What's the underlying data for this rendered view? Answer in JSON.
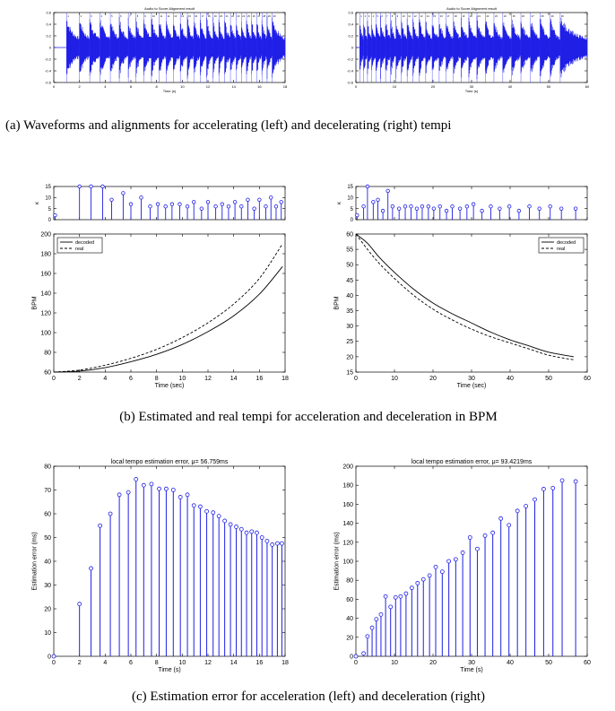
{
  "captions": {
    "a": "(a) Waveforms and alignments for accelerating (left) and decelerating (right) tempi",
    "b": "(b) Estimated and real tempi for acceleration and deceleration in BPM",
    "c": "(c) Estimation error for acceleration (left) and deceleration (right)"
  },
  "chart_data": [
    {
      "id": "wave-accel",
      "type": "area",
      "title": "Audio to Score Alignment result",
      "xlabel": "Time (s)",
      "ylabel": "",
      "xlim": [
        0,
        18
      ],
      "ylim": [
        -0.6,
        0.6
      ],
      "xticks": [
        0,
        2,
        4,
        6,
        8,
        10,
        12,
        14,
        16,
        18
      ],
      "yticks": [
        0.6,
        0.4,
        0.2,
        0,
        -0.2,
        -0.4,
        -0.6
      ],
      "alignment_markers": [
        "1",
        "2",
        "3",
        "4",
        "5",
        "6",
        "7",
        "8",
        "9",
        "10",
        "11",
        "12",
        "13",
        "14",
        "15",
        "16",
        "17",
        "18",
        "19",
        "20",
        "21",
        "22",
        "23",
        "24",
        "25",
        "26",
        "27",
        "28",
        "29",
        "30"
      ],
      "onsets": [
        1.0,
        2.0,
        2.8,
        3.6,
        4.4,
        5.1,
        5.8,
        6.4,
        7.0,
        7.6,
        8.2,
        8.75,
        9.3,
        9.85,
        10.4,
        10.9,
        11.4,
        11.9,
        12.4,
        12.85,
        13.3,
        13.75,
        14.2,
        14.6,
        15.0,
        15.4,
        15.8,
        16.2,
        16.6,
        17.0
      ]
    },
    {
      "id": "wave-decel",
      "type": "area",
      "title": "Audio to Score Alignment result",
      "xlabel": "Time (s)",
      "ylabel": "",
      "xlim": [
        0,
        60
      ],
      "ylim": [
        -0.6,
        0.6
      ],
      "xticks": [
        0,
        10,
        20,
        30,
        40,
        50,
        60
      ],
      "yticks": [
        0.6,
        0.4,
        0.2,
        0,
        -0.2,
        -0.4,
        -0.6
      ],
      "alignment_markers": [
        "1",
        "2",
        "3",
        "4",
        "5",
        "6",
        "7",
        "8",
        "9",
        "10",
        "11",
        "12",
        "13",
        "14",
        "15",
        "16",
        "17",
        "18",
        "19",
        "20",
        "21",
        "22",
        "23",
        "24",
        "25",
        "26",
        "27",
        "28",
        "29",
        "30"
      ],
      "onsets": [
        1.0,
        2.0,
        3.0,
        4.1,
        5.2,
        6.4,
        7.7,
        9.0,
        10.4,
        11.8,
        13.3,
        14.8,
        16.4,
        18.1,
        19.8,
        21.6,
        23.4,
        25.3,
        27.3,
        29.3,
        31.4,
        33.6,
        35.8,
        38.1,
        40.4,
        42.8,
        45.3,
        47.8,
        50.4,
        53.0
      ]
    },
    {
      "id": "kappa-accel",
      "type": "scatter",
      "xlabel": "",
      "ylabel": "κ",
      "xlim": [
        0,
        18
      ],
      "ylim": [
        0,
        15
      ],
      "xticks": [
        0,
        2,
        4,
        6,
        8,
        10,
        12,
        14,
        16,
        18
      ],
      "yticks": [
        0,
        5,
        10,
        15
      ],
      "x": [
        0.1,
        2.0,
        2.9,
        3.8,
        4.5,
        5.4,
        6.0,
        6.8,
        7.5,
        8.1,
        8.7,
        9.2,
        9.8,
        10.4,
        10.9,
        11.5,
        12.0,
        12.6,
        13.1,
        13.6,
        14.1,
        14.6,
        15.1,
        15.6,
        16.0,
        16.5,
        16.9,
        17.3,
        17.7
      ],
      "values": [
        2,
        15,
        15,
        15,
        9,
        12,
        7,
        10,
        6,
        7,
        6,
        7,
        7,
        6,
        8,
        5,
        8,
        6,
        7,
        6,
        8,
        6,
        9,
        5,
        9,
        6,
        10,
        6,
        8
      ]
    },
    {
      "id": "kappa-decel",
      "type": "scatter",
      "xlabel": "",
      "ylabel": "κ",
      "xlim": [
        0,
        60
      ],
      "ylim": [
        0,
        15
      ],
      "xticks": [
        0,
        10,
        20,
        30,
        40,
        50,
        60
      ],
      "yticks": [
        0,
        5,
        10,
        15
      ],
      "x": [
        0.3,
        2.0,
        3.0,
        4.5,
        5.7,
        7.0,
        8.3,
        9.5,
        11.2,
        12.8,
        14.3,
        15.8,
        17.2,
        18.8,
        20.2,
        21.8,
        23.5,
        25.0,
        27.0,
        28.8,
        30.5,
        32.7,
        35.0,
        37.3,
        39.8,
        42.3,
        45.0,
        47.6,
        50.4,
        53.3,
        57.0
      ],
      "values": [
        2,
        6,
        15,
        8,
        9,
        4,
        13,
        6,
        5,
        6,
        6,
        5,
        6,
        6,
        5,
        6,
        4,
        6,
        5,
        6,
        7,
        4,
        6,
        5,
        6,
        4,
        6,
        5,
        6,
        5,
        5
      ]
    },
    {
      "id": "bpm-accel",
      "type": "line",
      "xlabel": "Time (sec)",
      "ylabel": "BPM",
      "xlim": [
        0,
        18
      ],
      "ylim": [
        60,
        200
      ],
      "xticks": [
        0,
        2,
        4,
        6,
        8,
        10,
        12,
        14,
        16,
        18
      ],
      "yticks": [
        60,
        80,
        100,
        120,
        140,
        160,
        180,
        200
      ],
      "legend": "top-left",
      "x": [
        0,
        2,
        4,
        6,
        8,
        10,
        12,
        14,
        16,
        17.8
      ],
      "series": [
        {
          "name": "decoded",
          "dash": "solid",
          "values": [
            60,
            61,
            64.5,
            70.5,
            78,
            88,
            101,
            117,
            139,
            167
          ]
        },
        {
          "name": "real",
          "dash": "dashed",
          "values": [
            60,
            62,
            67,
            74,
            83,
            95,
            110,
            129,
            155,
            190
          ]
        }
      ]
    },
    {
      "id": "bpm-decel",
      "type": "line",
      "xlabel": "Time (sec)",
      "ylabel": "BPM",
      "xlim": [
        0,
        60
      ],
      "ylim": [
        15,
        60
      ],
      "xticks": [
        0,
        10,
        20,
        30,
        40,
        50,
        60
      ],
      "yticks": [
        15,
        20,
        25,
        30,
        35,
        40,
        45,
        50,
        55,
        60
      ],
      "legend": "top-right",
      "x": [
        0,
        3,
        6,
        10,
        15,
        20,
        25,
        30,
        35,
        40,
        45,
        50,
        56.5
      ],
      "series": [
        {
          "name": "decoded",
          "dash": "solid",
          "values": [
            60,
            57,
            52.5,
            47.5,
            42,
            37.5,
            34,
            31,
            28,
            25.5,
            23.5,
            21.5,
            20
          ]
        },
        {
          "name": "real",
          "dash": "dashed",
          "values": [
            60,
            55,
            50.5,
            45.5,
            40,
            35.5,
            32,
            29,
            26.5,
            24.5,
            22.5,
            20.5,
            19
          ]
        }
      ]
    },
    {
      "id": "err-accel",
      "type": "scatter",
      "title": "local tempo estimation error, μ= 56.759ms",
      "xlabel": "Time (s)",
      "ylabel": "Estimation error (ms)",
      "xlim": [
        0,
        18
      ],
      "ylim": [
        0,
        80
      ],
      "xticks": [
        0,
        2,
        4,
        6,
        8,
        10,
        12,
        14,
        16,
        18
      ],
      "yticks": [
        0,
        10,
        20,
        30,
        40,
        50,
        60,
        70,
        80
      ],
      "x": [
        0,
        2.0,
        2.9,
        3.6,
        4.4,
        5.1,
        5.8,
        6.4,
        7.0,
        7.6,
        8.2,
        8.75,
        9.3,
        9.85,
        10.4,
        10.9,
        11.4,
        11.9,
        12.4,
        12.85,
        13.3,
        13.75,
        14.2,
        14.6,
        15.0,
        15.4,
        15.8,
        16.2,
        16.6,
        17.0,
        17.4,
        17.75
      ],
      "values": [
        0,
        22,
        37,
        55,
        60,
        68,
        69,
        74.5,
        72,
        72.5,
        70.5,
        70.5,
        70,
        67,
        68,
        63.5,
        63,
        61,
        60.5,
        59,
        57,
        55.5,
        54.5,
        53.5,
        52,
        52.5,
        52,
        50,
        48.5,
        47,
        47.5,
        47.5
      ]
    },
    {
      "id": "err-decel",
      "type": "scatter",
      "title": "local tempo estimation error, μ= 93.4219ms",
      "xlabel": "Time (s)",
      "ylabel": "Estimation error (ms)",
      "xlim": [
        0,
        60
      ],
      "ylim": [
        0,
        200
      ],
      "xticks": [
        0,
        10,
        20,
        30,
        40,
        50,
        60
      ],
      "yticks": [
        0,
        20,
        40,
        60,
        80,
        100,
        120,
        140,
        160,
        180,
        200
      ],
      "x": [
        0,
        2.0,
        3.0,
        4.2,
        5.3,
        6.5,
        7.7,
        9.0,
        10.3,
        11.6,
        13.0,
        14.5,
        16.0,
        17.5,
        19.1,
        20.7,
        22.4,
        24.1,
        25.9,
        27.7,
        29.6,
        31.5,
        33.5,
        35.5,
        37.6,
        39.7,
        41.9,
        44.1,
        46.4,
        48.7,
        51.1,
        53.5,
        57.0
      ],
      "values": [
        0,
        3,
        21,
        30,
        39,
        44,
        63,
        52,
        62,
        63,
        66,
        72,
        77,
        81,
        85,
        94,
        89,
        100,
        102,
        109,
        125,
        113,
        127,
        130,
        145,
        138,
        153,
        158,
        165,
        176,
        177,
        185,
        184
      ]
    }
  ]
}
